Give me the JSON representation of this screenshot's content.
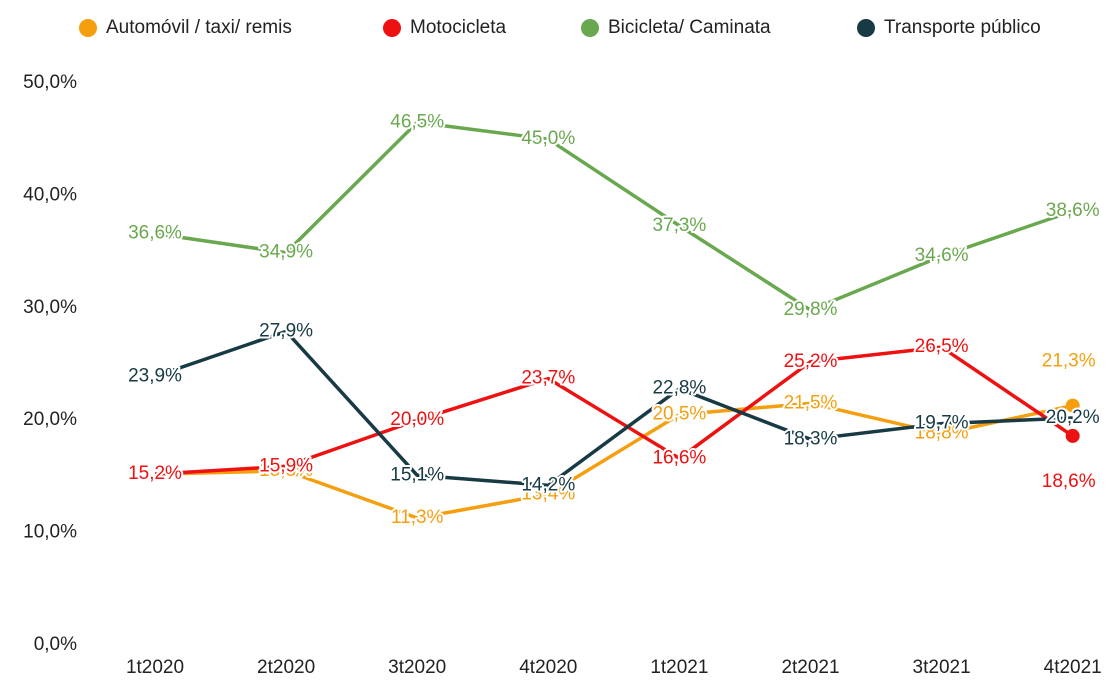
{
  "chart_data": {
    "type": "line",
    "categories": [
      "1t2020",
      "2t2020",
      "3t2020",
      "4t2020",
      "1t2021",
      "2t2021",
      "3t2021",
      "4t2021"
    ],
    "series": [
      {
        "name": "Automóvil / taxi/ remis",
        "color": "#f59f0f",
        "values": [
          15.2,
          15.5,
          11.3,
          13.4,
          20.5,
          21.5,
          18.8,
          21.3
        ],
        "value_labels": [
          "15,2%",
          "15,5%",
          "11,3%",
          "13,4%",
          "20,5%",
          "21,5%",
          "18,8%",
          "21,3%"
        ]
      },
      {
        "name": "Motocicleta",
        "color": "#ee1111",
        "values": [
          15.2,
          15.9,
          20.0,
          23.7,
          16.6,
          25.2,
          26.5,
          18.6
        ],
        "value_labels": [
          "15,2%",
          "15,9%",
          "20,0%",
          "23,7%",
          "16,6%",
          "25,2%",
          "26,5%",
          "18,6%"
        ]
      },
      {
        "name": "Bicicleta/ Caminata",
        "color": "#6aa84f",
        "values": [
          36.6,
          34.9,
          46.5,
          45.0,
          37.3,
          29.8,
          34.6,
          38.6
        ],
        "value_labels": [
          "36,6%",
          "34,9%",
          "46,5%",
          "45,0%",
          "37,3%",
          "29,8%",
          "34,6%",
          "38,6%"
        ]
      },
      {
        "name": "Transporte público",
        "color": "#173a45",
        "values": [
          23.9,
          27.9,
          15.1,
          14.2,
          22.8,
          18.3,
          19.7,
          20.2
        ],
        "value_labels": [
          "23,9%",
          "27,9%",
          "15,1%",
          "14,2%",
          "22,8%",
          "18,3%",
          "19,7%",
          "20,2%"
        ]
      }
    ],
    "ylim": [
      0,
      50
    ],
    "yticks": [
      {
        "value": 0,
        "label": "0,0%"
      },
      {
        "value": 10,
        "label": "10,0%"
      },
      {
        "value": 20,
        "label": "20,0%"
      },
      {
        "value": 30,
        "label": "30,0%"
      },
      {
        "value": 40,
        "label": "40,0%"
      },
      {
        "value": 50,
        "label": "50,0%"
      }
    ],
    "legend": "top"
  }
}
